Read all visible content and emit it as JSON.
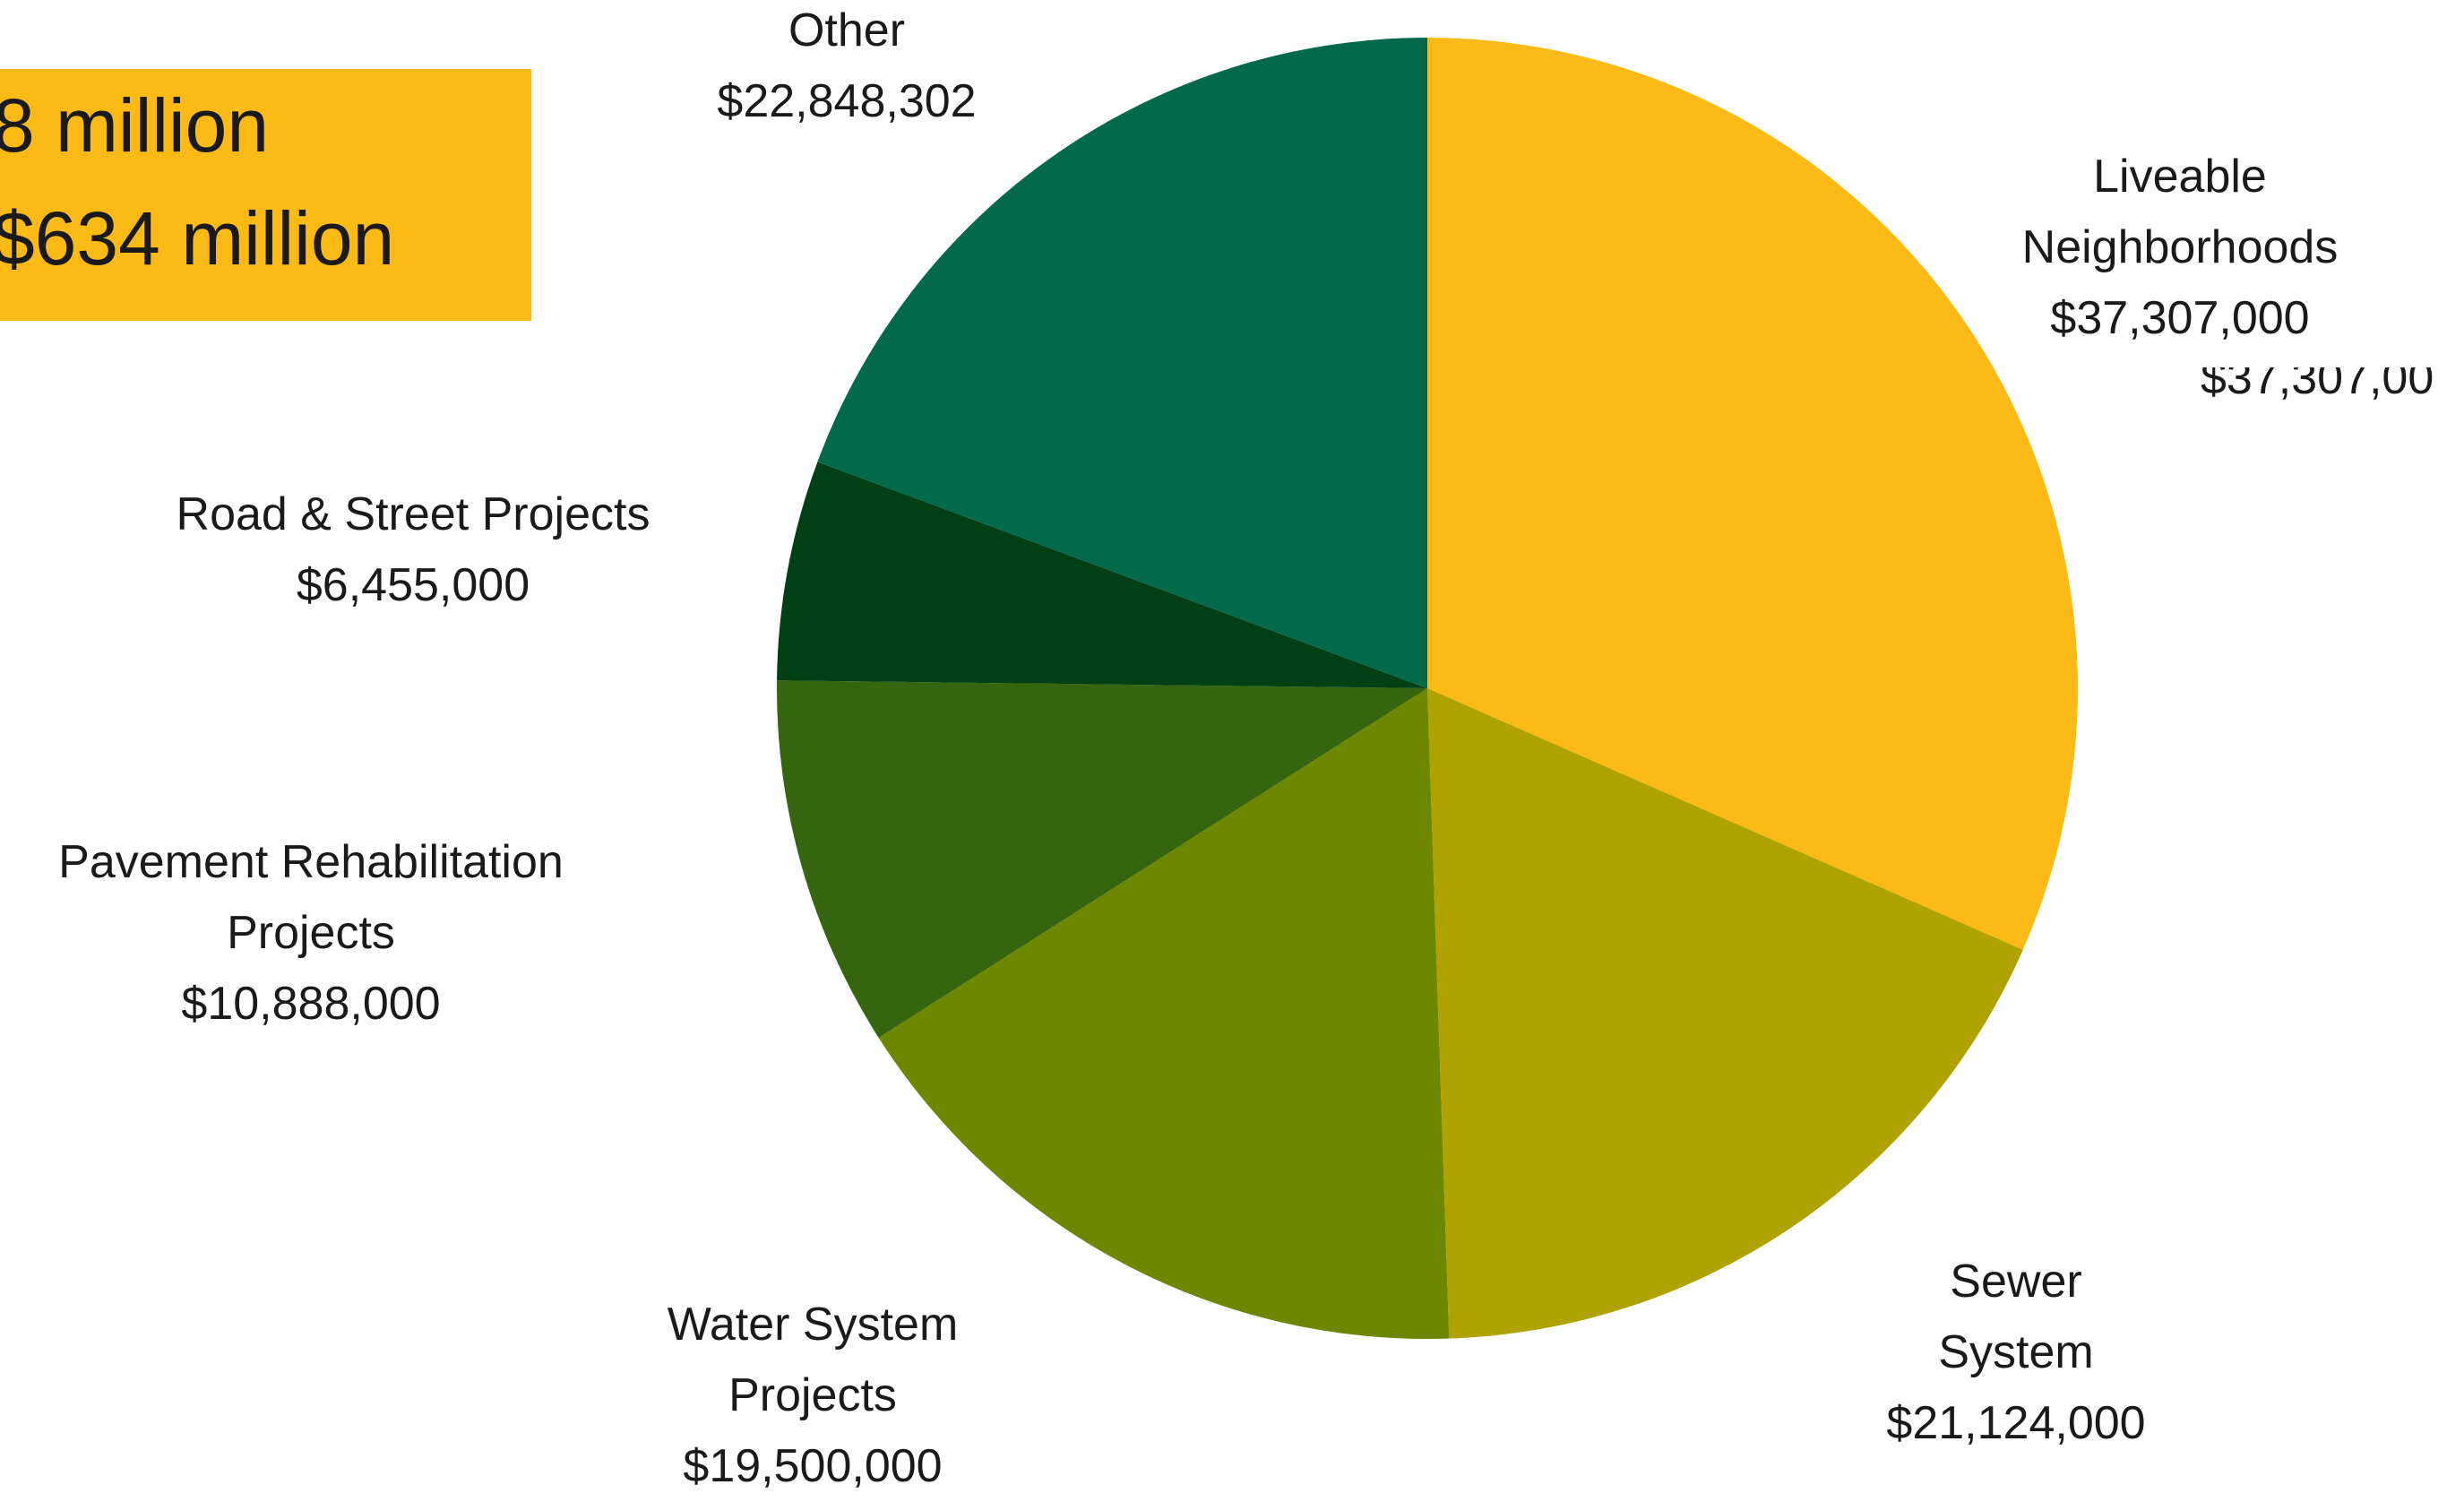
{
  "chart_data": {
    "type": "pie",
    "categories": [
      "Liveable Neighborhoods",
      "Sewer System",
      "Water System Projects",
      "Pavement Rehabilitation Projects",
      "Road & Street Projects",
      "Other"
    ],
    "values": [
      37307000,
      21124000,
      19500000,
      10888000,
      6455000,
      22848302
    ],
    "value_labels": [
      "$37,307,000",
      "$21,124,000",
      "$19,500,000",
      "$10,888,000",
      "$6,455,000",
      "$22,848,302"
    ],
    "colors": [
      "#FBBA16",
      "#B0A200",
      "#6E8700",
      "#35650F",
      "#004014",
      "#02694B"
    ],
    "start_angle": 0,
    "direction": "clockwise"
  },
  "box_lines": [
    "8 million",
    "$634 million"
  ],
  "cropped_label": "$37,307,00"
}
